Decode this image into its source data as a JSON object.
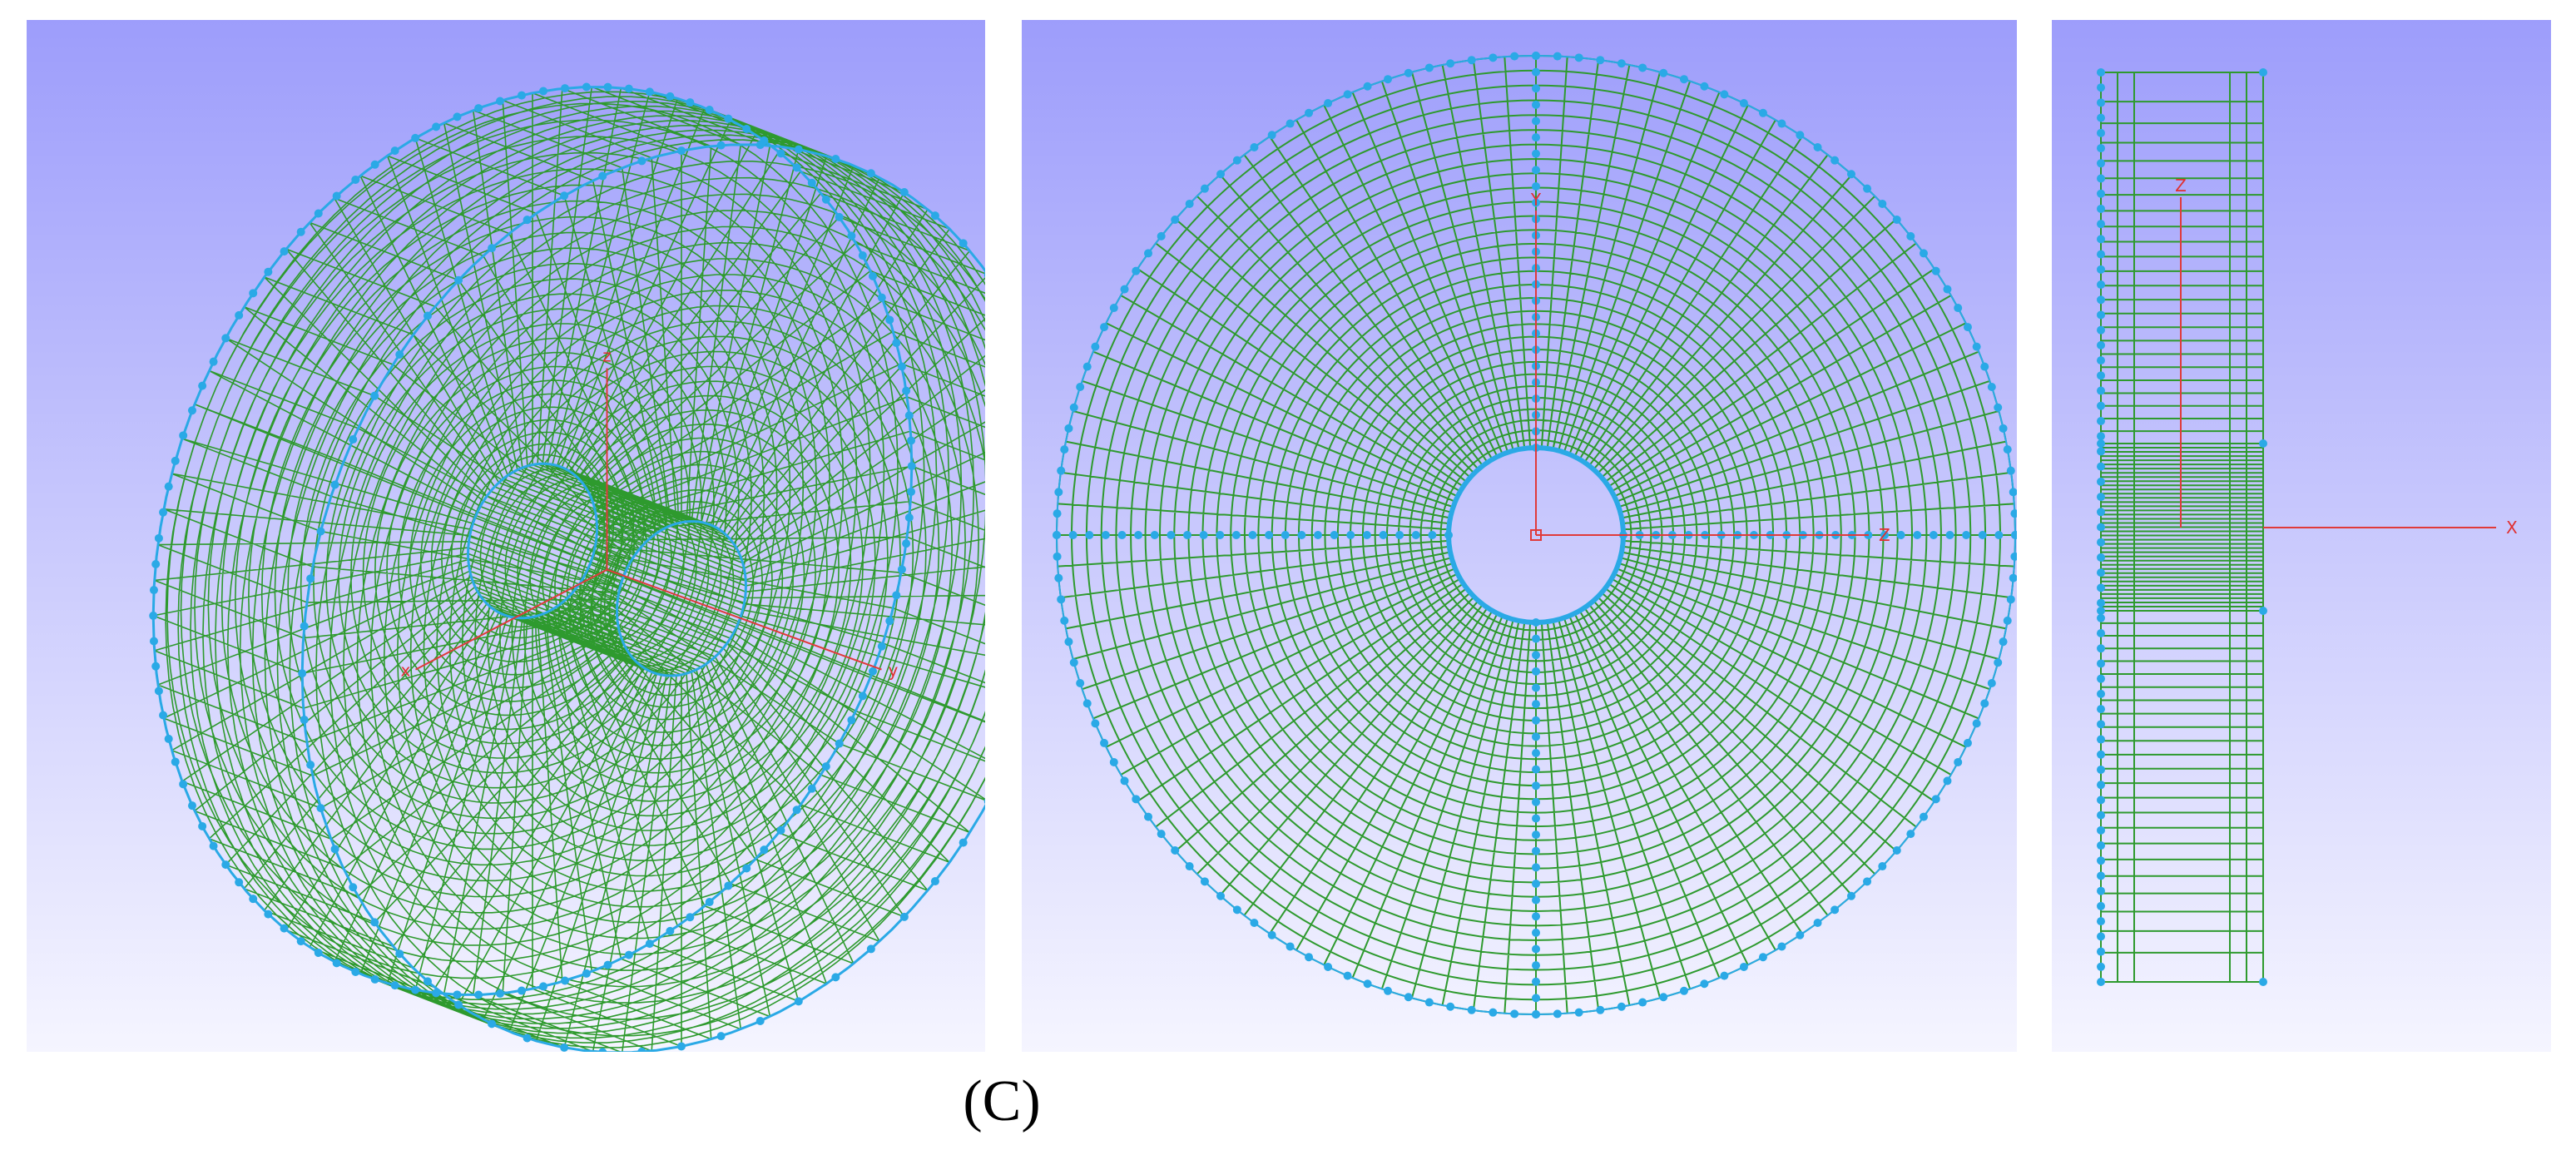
{
  "caption": "(C)",
  "panels": [
    {
      "axes": [
        "z",
        "x",
        "y"
      ]
    },
    {
      "axes": [
        "Y",
        "Z"
      ]
    },
    {
      "axes": [
        "Z",
        "X"
      ]
    }
  ]
}
